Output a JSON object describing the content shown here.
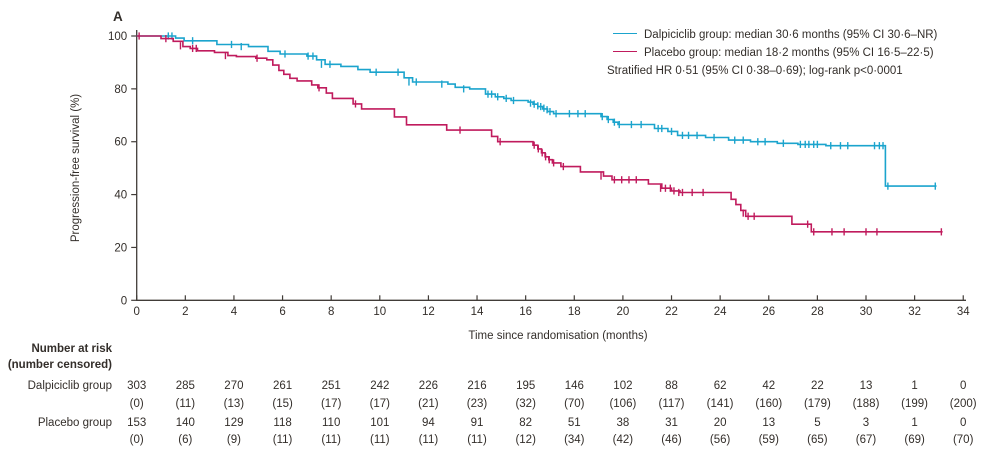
{
  "panel_label": "A",
  "legend": [
    {
      "label": "Dalpiciclib group: median 30·6 months (95% CI 30·6–NR)",
      "color": "#1ba4cd"
    },
    {
      "label": "Placebo group: median 18·2 months (95% CI 16·5–22·5)",
      "color": "#c01b5d"
    }
  ],
  "stats_note": "Stratified HR 0·51 (95% CI 0·38–0·69); log-rank p<0·0001",
  "chart_data": {
    "type": "line",
    "subtype": "kaplan-meier-step",
    "title": "",
    "xlabel": "Time since randomisation (months)",
    "ylabel": "Progression-free survival (%)",
    "xlim": [
      0,
      34
    ],
    "ylim": [
      0,
      100
    ],
    "x_ticks": [
      0,
      2,
      4,
      6,
      8,
      10,
      12,
      14,
      16,
      18,
      20,
      22,
      24,
      26,
      28,
      30,
      32,
      34
    ],
    "y_ticks": [
      0,
      20,
      40,
      60,
      80,
      100
    ],
    "grid": false,
    "legend_position": "top-right",
    "series": [
      {
        "name": "Dalpiciclib group",
        "color": "#1ba4cd",
        "median_months": 30.6,
        "ci95": "30.6–NR",
        "steps": [
          [
            0,
            100
          ],
          [
            1.6,
            99.2
          ],
          [
            1.95,
            98.2
          ],
          [
            3.3,
            96.8
          ],
          [
            4.6,
            96
          ],
          [
            5.4,
            94.2
          ],
          [
            5.9,
            93.2
          ],
          [
            7.0,
            92.4
          ],
          [
            7.4,
            91
          ],
          [
            7.75,
            89.3
          ],
          [
            8.4,
            88.5
          ],
          [
            9.1,
            87.3
          ],
          [
            9.6,
            86.3
          ],
          [
            11.0,
            84.2
          ],
          [
            11.35,
            82.6
          ],
          [
            12.8,
            81.8
          ],
          [
            13.1,
            80.6
          ],
          [
            13.7,
            80
          ],
          [
            14.35,
            78
          ],
          [
            14.75,
            77
          ],
          [
            15.1,
            76.4
          ],
          [
            15.4,
            75.6
          ],
          [
            16.1,
            75
          ],
          [
            16.3,
            74.2
          ],
          [
            16.5,
            73.3
          ],
          [
            16.7,
            72.4
          ],
          [
            16.9,
            71.4
          ],
          [
            17.15,
            70.6
          ],
          [
            19.1,
            69.5
          ],
          [
            19.35,
            68.4
          ],
          [
            19.6,
            67.4
          ],
          [
            19.8,
            66.5
          ],
          [
            21.3,
            65
          ],
          [
            21.85,
            63.9
          ],
          [
            22.25,
            62.4
          ],
          [
            23.4,
            61.6
          ],
          [
            24.35,
            60.6
          ],
          [
            25.25,
            60
          ],
          [
            26.35,
            59.4
          ],
          [
            27.2,
            59
          ],
          [
            28.35,
            58.5
          ],
          [
            30.8,
            43.2
          ],
          [
            32.9,
            43.2
          ]
        ],
        "censor_marks": [
          [
            1.3,
            100
          ],
          [
            1.45,
            100
          ],
          [
            2.3,
            98.2
          ],
          [
            3.9,
            96.8
          ],
          [
            4.3,
            96
          ],
          [
            6.1,
            93.2
          ],
          [
            7.05,
            92.4
          ],
          [
            7.25,
            92.4
          ],
          [
            7.6,
            89.3
          ],
          [
            7.95,
            89.3
          ],
          [
            9.85,
            86.3
          ],
          [
            10.75,
            86.3
          ],
          [
            11.2,
            82.6
          ],
          [
            11.5,
            82.6
          ],
          [
            12.55,
            81.8
          ],
          [
            13.45,
            80
          ],
          [
            14.45,
            78
          ],
          [
            14.6,
            78
          ],
          [
            14.85,
            77
          ],
          [
            15.2,
            76.4
          ],
          [
            15.5,
            75.6
          ],
          [
            16.2,
            74.6
          ],
          [
            16.35,
            74.2
          ],
          [
            16.5,
            73.6
          ],
          [
            16.62,
            73.3
          ],
          [
            16.75,
            72.7
          ],
          [
            16.88,
            72.1
          ],
          [
            17.0,
            71.4
          ],
          [
            17.25,
            70.6
          ],
          [
            17.8,
            70.6
          ],
          [
            18.15,
            70.6
          ],
          [
            18.45,
            70.6
          ],
          [
            19.15,
            69.5
          ],
          [
            19.4,
            68.4
          ],
          [
            19.65,
            67.4
          ],
          [
            19.85,
            66.5
          ],
          [
            20.35,
            66.5
          ],
          [
            20.75,
            66.5
          ],
          [
            21.45,
            65
          ],
          [
            21.6,
            65
          ],
          [
            22.0,
            63.9
          ],
          [
            22.45,
            62.4
          ],
          [
            22.7,
            62.4
          ],
          [
            23.05,
            62.4
          ],
          [
            23.75,
            61.6
          ],
          [
            24.6,
            60.6
          ],
          [
            24.95,
            60.6
          ],
          [
            25.55,
            60
          ],
          [
            25.85,
            60
          ],
          [
            26.6,
            59.4
          ],
          [
            27.3,
            59
          ],
          [
            27.5,
            59
          ],
          [
            27.65,
            59
          ],
          [
            27.85,
            59
          ],
          [
            28.0,
            59
          ],
          [
            28.55,
            58.5
          ],
          [
            28.95,
            58.5
          ],
          [
            29.25,
            58.5
          ],
          [
            30.35,
            58.5
          ],
          [
            30.55,
            58.5
          ],
          [
            30.7,
            58.5
          ],
          [
            30.9,
            43.2
          ],
          [
            32.85,
            43.2
          ]
        ]
      },
      {
        "name": "Placebo group",
        "color": "#c01b5d",
        "median_months": 18.2,
        "ci95": "16.5–22.5",
        "steps": [
          [
            0,
            100
          ],
          [
            1.0,
            99
          ],
          [
            1.5,
            98
          ],
          [
            1.9,
            96
          ],
          [
            2.2,
            95.3
          ],
          [
            2.5,
            94.4
          ],
          [
            3.2,
            93.8
          ],
          [
            3.75,
            92.6
          ],
          [
            4.1,
            92.2
          ],
          [
            4.9,
            91.6
          ],
          [
            5.35,
            91
          ],
          [
            5.6,
            89
          ],
          [
            5.85,
            87
          ],
          [
            6.05,
            85.5
          ],
          [
            6.3,
            84
          ],
          [
            6.6,
            83
          ],
          [
            7.2,
            81.5
          ],
          [
            7.45,
            80.4
          ],
          [
            7.8,
            78.4
          ],
          [
            8.05,
            76.4
          ],
          [
            8.9,
            74.3
          ],
          [
            9.25,
            72.4
          ],
          [
            10.6,
            69.4
          ],
          [
            11.1,
            66.4
          ],
          [
            12.75,
            64.4
          ],
          [
            14.6,
            62
          ],
          [
            14.85,
            60
          ],
          [
            16.3,
            58.7
          ],
          [
            16.5,
            57.3
          ],
          [
            16.65,
            55.8
          ],
          [
            16.8,
            54.3
          ],
          [
            16.95,
            53.2
          ],
          [
            17.1,
            52
          ],
          [
            17.45,
            50.6
          ],
          [
            18.25,
            48.6
          ],
          [
            19.2,
            47
          ],
          [
            19.55,
            45.6
          ],
          [
            21.05,
            44
          ],
          [
            21.6,
            42.4
          ],
          [
            22.0,
            41.4
          ],
          [
            22.35,
            40.8
          ],
          [
            24.45,
            38.2
          ],
          [
            24.65,
            36.2
          ],
          [
            24.85,
            34
          ],
          [
            25.05,
            31.8
          ],
          [
            26.95,
            28.8
          ],
          [
            27.75,
            25.9
          ],
          [
            33.15,
            25.9
          ]
        ],
        "censor_marks": [
          [
            0.1,
            100
          ],
          [
            1.2,
            99
          ],
          [
            1.8,
            96.3
          ],
          [
            2.3,
            95.3
          ],
          [
            2.45,
            95.3
          ],
          [
            3.65,
            92.6
          ],
          [
            4.95,
            91.6
          ],
          [
            7.5,
            80.4
          ],
          [
            9.0,
            74.3
          ],
          [
            13.3,
            64.4
          ],
          [
            14.95,
            60
          ],
          [
            16.35,
            58.7
          ],
          [
            16.52,
            57.3
          ],
          [
            16.68,
            55.8
          ],
          [
            16.82,
            54.3
          ],
          [
            16.97,
            53.2
          ],
          [
            17.15,
            52
          ],
          [
            17.55,
            50.6
          ],
          [
            19.1,
            47
          ],
          [
            19.65,
            45.6
          ],
          [
            19.95,
            45.6
          ],
          [
            20.25,
            45.6
          ],
          [
            20.55,
            45.6
          ],
          [
            21.55,
            42.4
          ],
          [
            21.75,
            42.4
          ],
          [
            21.95,
            42.4
          ],
          [
            22.1,
            41.4
          ],
          [
            22.3,
            40.8
          ],
          [
            22.45,
            40.8
          ],
          [
            22.85,
            40.8
          ],
          [
            23.3,
            40.8
          ],
          [
            24.95,
            33
          ],
          [
            25.15,
            31.8
          ],
          [
            25.4,
            31.8
          ],
          [
            27.6,
            28.8
          ],
          [
            27.85,
            25.9
          ],
          [
            28.6,
            25.9
          ],
          [
            29.1,
            25.9
          ],
          [
            30.0,
            25.9
          ],
          [
            30.45,
            25.9
          ],
          [
            33.1,
            25.9
          ]
        ]
      }
    ]
  },
  "risk_table": {
    "header_line1": "Number at risk",
    "header_line2": "(number censored)",
    "months": [
      0,
      2,
      4,
      6,
      8,
      10,
      12,
      14,
      16,
      18,
      20,
      22,
      24,
      26,
      28,
      30,
      32,
      34
    ],
    "groups": [
      {
        "label": "Dalpiciclib group",
        "at_risk": [
          "303",
          "285",
          "270",
          "261",
          "251",
          "242",
          "226",
          "216",
          "195",
          "146",
          "102",
          "88",
          "62",
          "42",
          "22",
          "13",
          "1",
          "0"
        ],
        "censored": [
          "(0)",
          "(11)",
          "(13)",
          "(15)",
          "(17)",
          "(17)",
          "(21)",
          "(23)",
          "(32)",
          "(70)",
          "(106)",
          "(117)",
          "(141)",
          "(160)",
          "(179)",
          "(188)",
          "(199)",
          "(200)"
        ]
      },
      {
        "label": "Placebo group",
        "at_risk": [
          "153",
          "140",
          "129",
          "118",
          "110",
          "101",
          "94",
          "91",
          "82",
          "51",
          "38",
          "31",
          "20",
          "13",
          "5",
          "3",
          "1",
          "0"
        ],
        "censored": [
          "(0)",
          "(6)",
          "(9)",
          "(11)",
          "(11)",
          "(11)",
          "(11)",
          "(11)",
          "(12)",
          "(34)",
          "(42)",
          "(46)",
          "(56)",
          "(59)",
          "(65)",
          "(67)",
          "(69)",
          "(70)"
        ]
      }
    ]
  }
}
